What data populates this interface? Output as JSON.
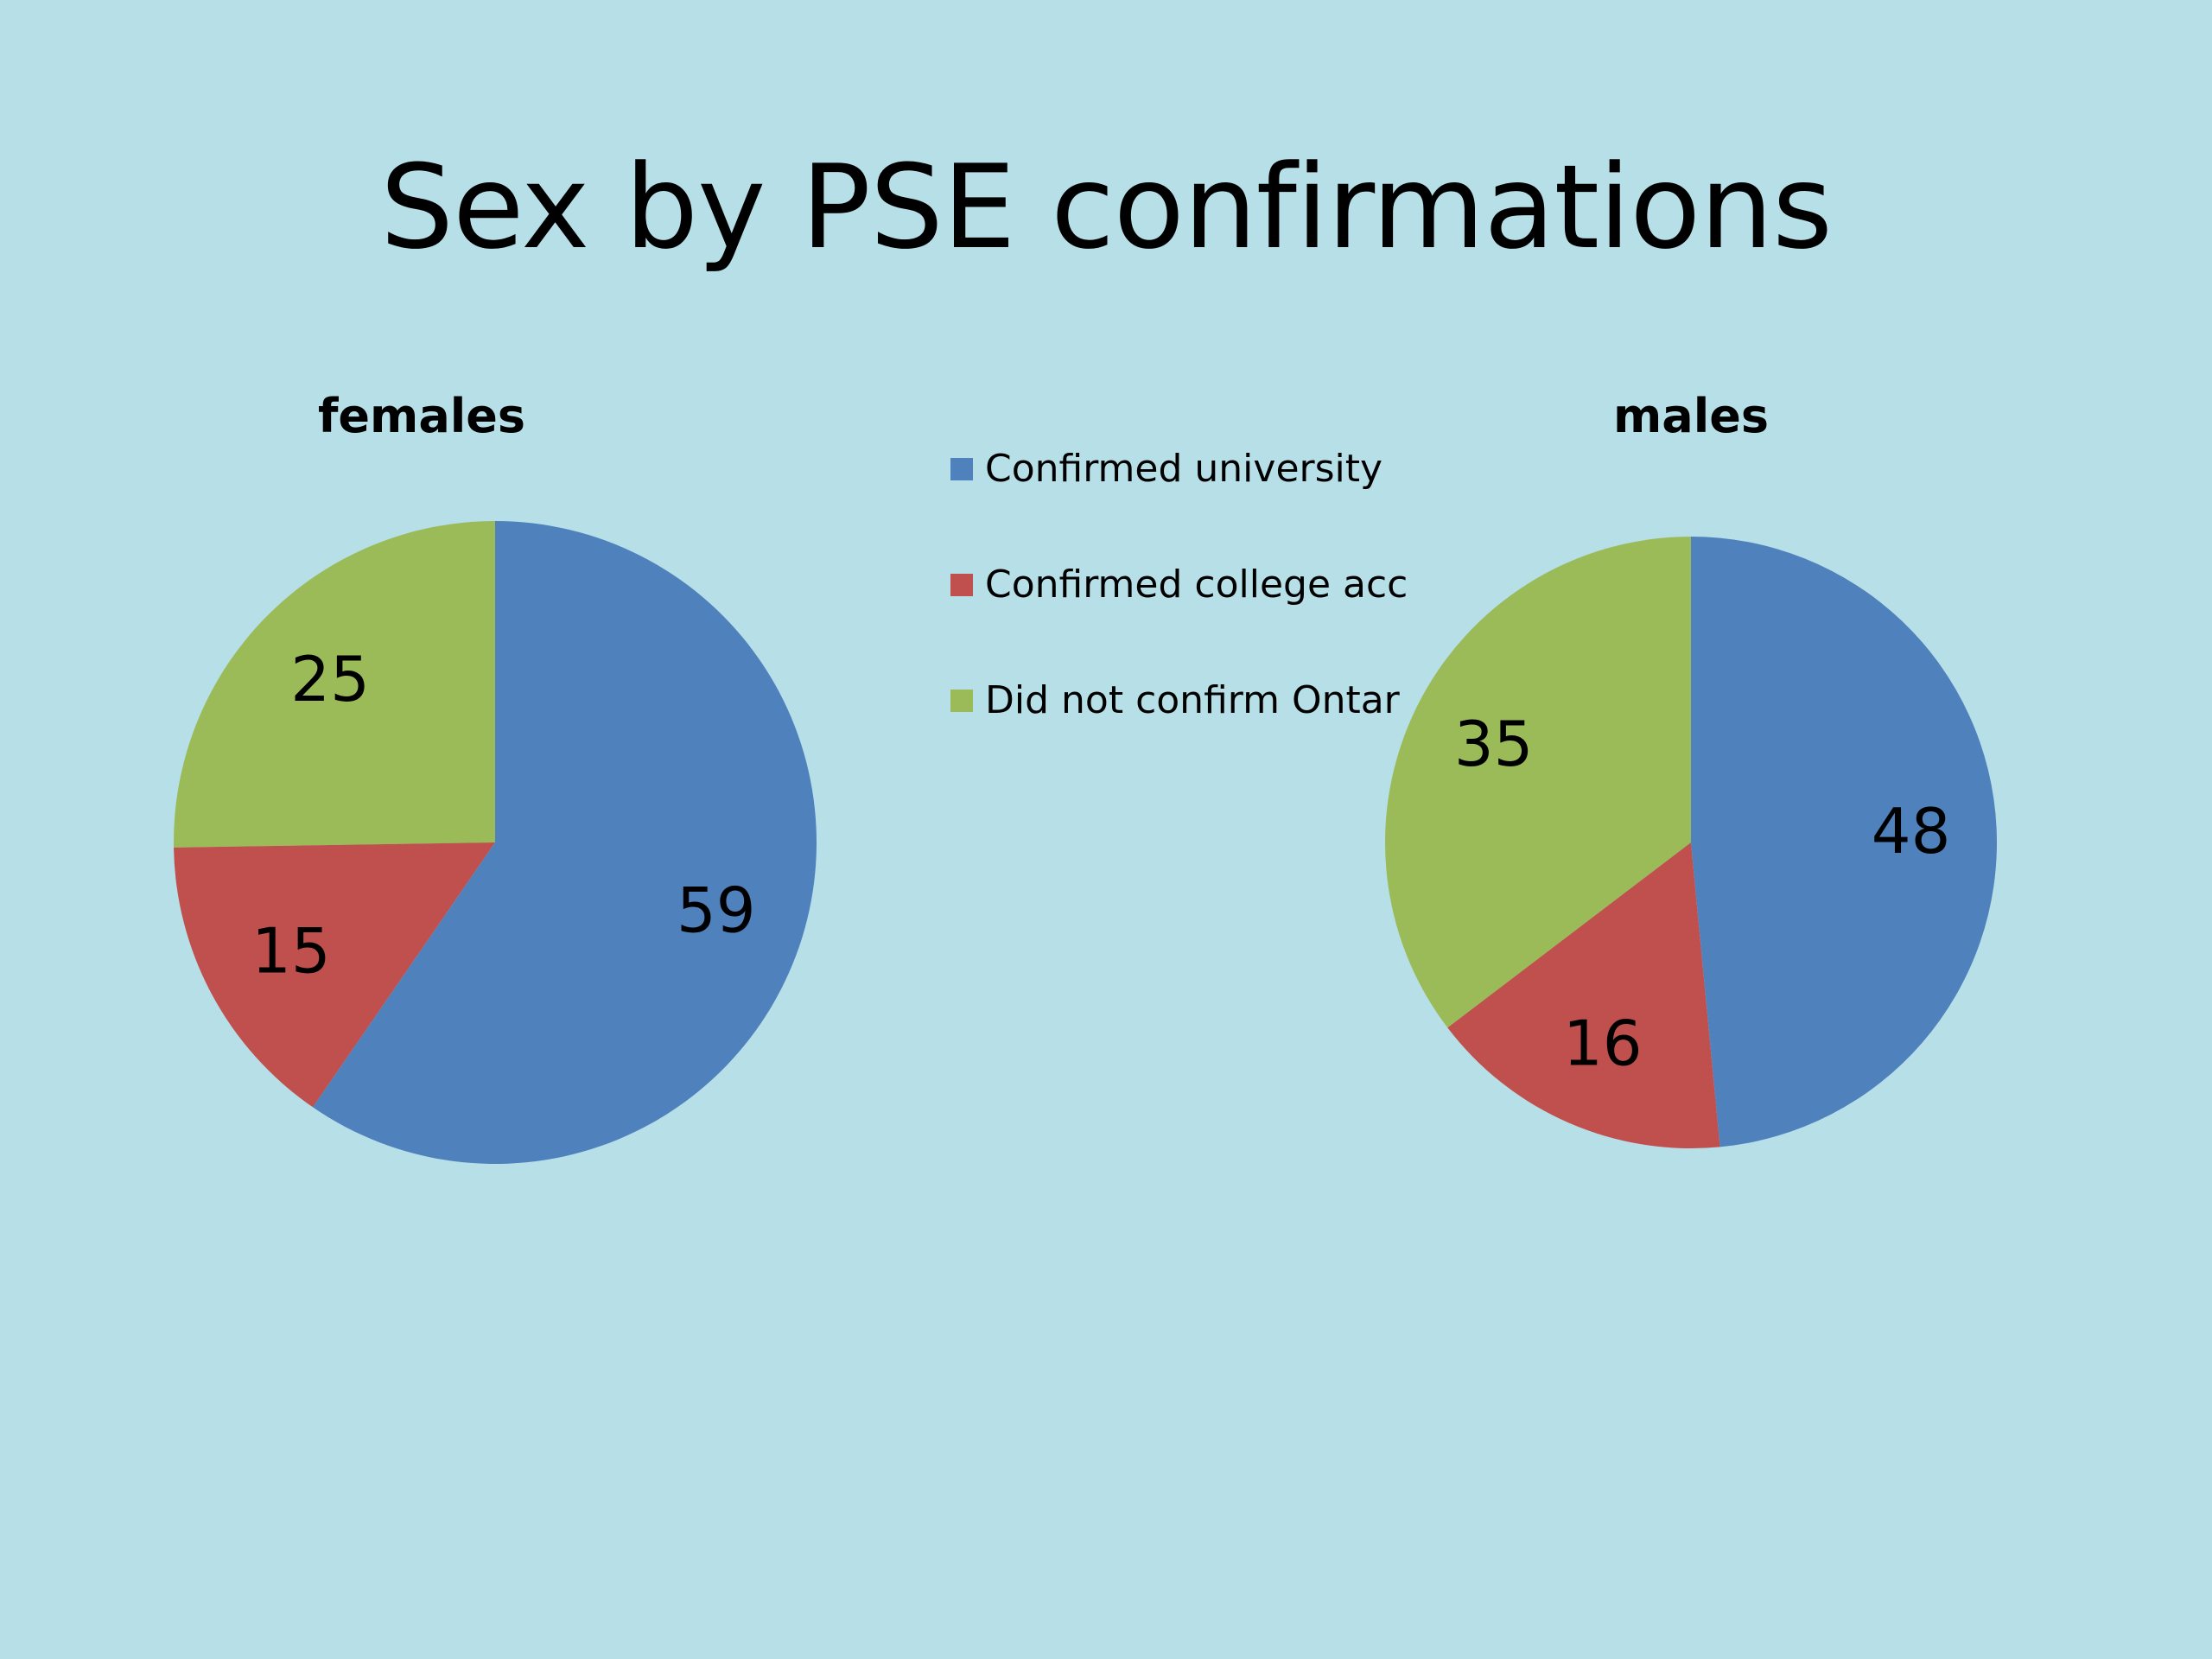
{
  "slide": {
    "title": "Sex by PSE confirmations",
    "background": "#b7dfe7"
  },
  "legend": {
    "placement": "center",
    "items": [
      {
        "label": "Confirmed university",
        "color": "#4f81bd"
      },
      {
        "label": "Confirmed college acc",
        "color": "#c0504d"
      },
      {
        "label": "Did not confirm Ontar",
        "color": "#9bbb59"
      }
    ]
  },
  "chart_data": [
    {
      "type": "pie",
      "title": "females",
      "categories": [
        "Confirmed university",
        "Confirmed college acc",
        "Did not confirm Ontar"
      ],
      "values": [
        59,
        15,
        25
      ],
      "colors": [
        "#4f81bd",
        "#c0504d",
        "#9bbb59"
      ],
      "data_labels": [
        "59",
        "15",
        "25"
      ]
    },
    {
      "type": "pie",
      "title": "males",
      "categories": [
        "Confirmed university",
        "Confirmed college acc",
        "Did not confirm Ontar"
      ],
      "values": [
        48,
        16,
        35
      ],
      "colors": [
        "#4f81bd",
        "#c0504d",
        "#9bbb59"
      ],
      "data_labels": [
        "48",
        "16",
        "35"
      ]
    }
  ]
}
